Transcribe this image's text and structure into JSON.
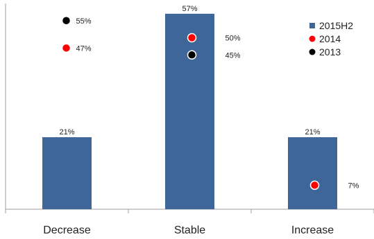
{
  "chart_data": {
    "type": "bar",
    "categories": [
      "Decrease",
      "Stable",
      "Increase"
    ],
    "ylim": [
      0,
      60
    ],
    "grid": false,
    "legend_position": "top-right",
    "series": [
      {
        "name": "2015H2",
        "kind": "bar",
        "color": "#3e6699",
        "values": [
          21,
          57,
          21
        ],
        "labels": [
          "21%",
          "57%",
          "21%"
        ]
      },
      {
        "name": "2014",
        "kind": "marker",
        "color": "#ff0000",
        "values": [
          47,
          50,
          7
        ],
        "labels": [
          "47%",
          "50%",
          "7%"
        ]
      },
      {
        "name": "2013",
        "kind": "marker",
        "color": "#000000",
        "values": [
          55,
          45,
          null
        ],
        "labels": [
          "55%",
          "45%",
          ""
        ]
      }
    ]
  }
}
